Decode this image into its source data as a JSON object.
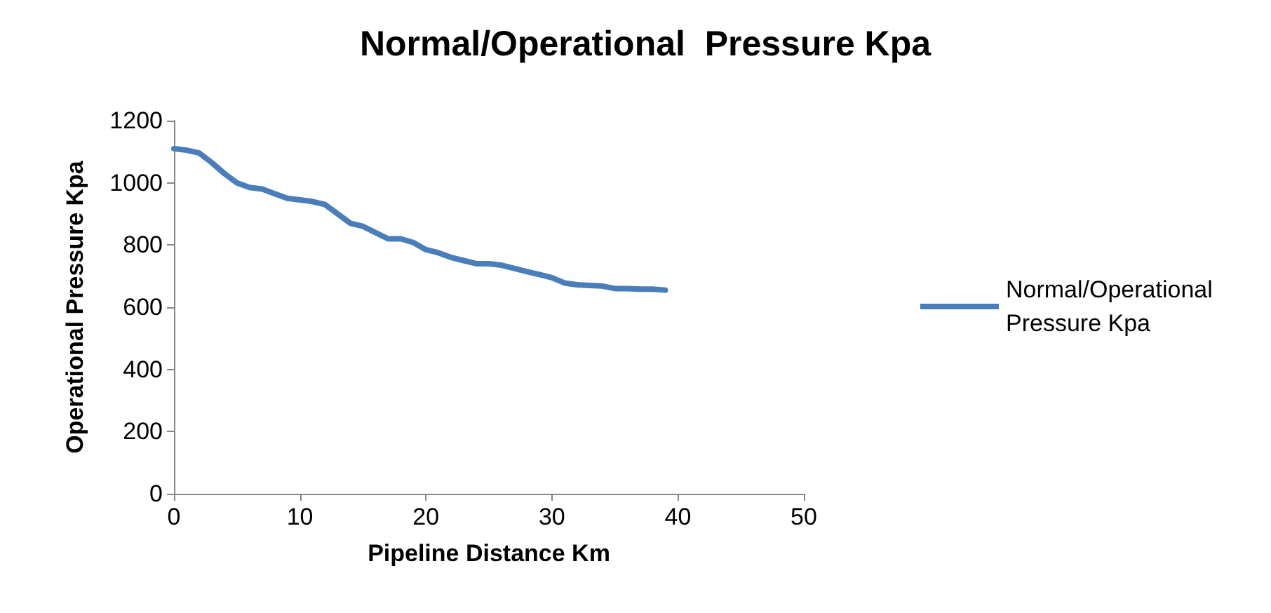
{
  "chart_data": {
    "type": "line",
    "title": "Normal/Operational  Pressure Kpa",
    "xlabel": "Pipeline Distance Km",
    "ylabel": "Operational Pressure Kpa",
    "x": [
      0,
      1,
      2,
      3,
      4,
      5,
      6,
      7,
      8,
      9,
      10,
      11,
      12,
      13,
      14,
      15,
      16,
      17,
      18,
      19,
      20,
      21,
      22,
      23,
      24,
      25,
      26,
      27,
      28,
      29,
      30,
      31,
      32,
      33,
      34,
      35,
      36,
      37,
      38,
      39
    ],
    "series": [
      {
        "name": "Normal/Operational Pressure Kpa",
        "color": "#4a7ebb",
        "values": [
          1110,
          1105,
          1096,
          1065,
          1030,
          1000,
          985,
          980,
          965,
          950,
          945,
          940,
          930,
          900,
          870,
          860,
          840,
          820,
          820,
          808,
          785,
          775,
          760,
          750,
          740,
          740,
          735,
          725,
          715,
          705,
          695,
          678,
          672,
          670,
          668,
          660,
          660,
          658,
          658,
          655
        ]
      }
    ],
    "xlim": [
      0,
      50
    ],
    "xticks": [
      0,
      10,
      20,
      30,
      40,
      50
    ],
    "ylim": [
      0,
      1200
    ],
    "yticks": [
      0,
      200,
      400,
      600,
      800,
      1000,
      1200
    ],
    "grid": false,
    "legend": "right",
    "marker": "none",
    "line_style": "solid"
  }
}
